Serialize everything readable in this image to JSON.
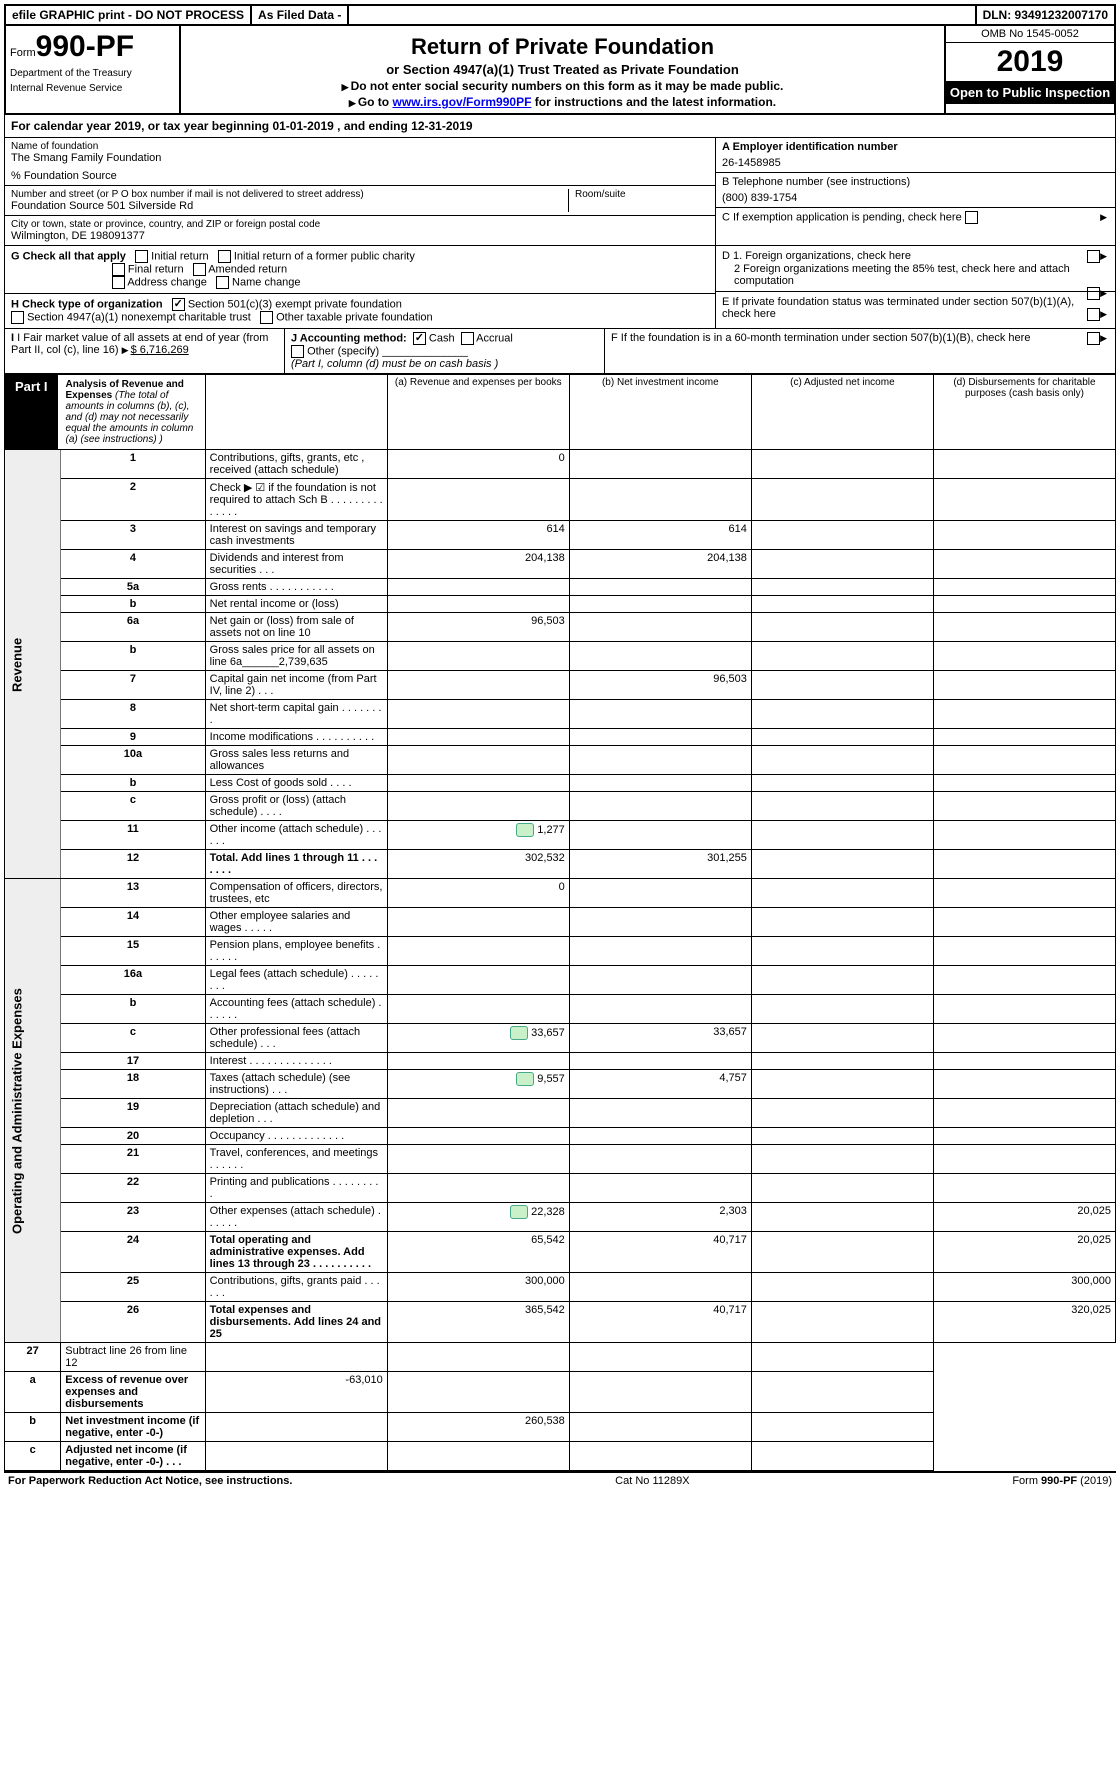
{
  "top": {
    "efile": "efile GRAPHIC print - DO NOT PROCESS",
    "asfiled": "As Filed Data -",
    "dln": "DLN: 93491232007170"
  },
  "header": {
    "form_prefix": "Form",
    "form_num": "990-PF",
    "dept1": "Department of the Treasury",
    "dept2": "Internal Revenue Service",
    "title": "Return of Private Foundation",
    "subtitle": "or Section 4947(a)(1) Trust Treated as Private Foundation",
    "note1": "Do not enter social security numbers on this form as it may be made public.",
    "note2_pre": "Go to ",
    "note2_link": "www.irs.gov/Form990PF",
    "note2_post": " for instructions and the latest information.",
    "omb": "OMB No 1545-0052",
    "year": "2019",
    "inspect": "Open to Public Inspection"
  },
  "calyear": "For calendar year 2019, or tax year beginning 01-01-2019          , and ending 12-31-2019",
  "info": {
    "name_label": "Name of foundation",
    "name": "The Smang Family Foundation",
    "source": "% Foundation Source",
    "addr_label": "Number and street (or P O  box number if mail is not delivered to street address)",
    "addr": "Foundation Source 501 Silverside Rd",
    "room_label": "Room/suite",
    "city_label": "City or town, state or province, country, and ZIP or foreign postal code",
    "city": "Wilmington, DE  198091377",
    "a_label": "A Employer identification number",
    "a_val": "26-1458985",
    "b_label": "B Telephone number (see instructions)",
    "b_val": "(800) 839-1754",
    "c_label": "C If exemption application is pending, check here",
    "d1": "D 1. Foreign organizations, check here",
    "d2": "2 Foreign organizations meeting the 85% test, check here and attach computation",
    "e": "E  If private foundation status was terminated under section 507(b)(1)(A), check here",
    "f": "F  If the foundation is in a 60-month termination under section 507(b)(1)(B), check here"
  },
  "g": {
    "label": "G Check all that apply",
    "opts": [
      "Initial return",
      "Initial return of a former public charity",
      "Final return",
      "Amended return",
      "Address change",
      "Name change"
    ]
  },
  "h": {
    "label": "H Check type of organization",
    "opt1": "Section 501(c)(3) exempt private foundation",
    "opt2": "Section 4947(a)(1) nonexempt charitable trust",
    "opt3": "Other taxable private foundation"
  },
  "i": {
    "label": "I Fair market value of all assets at end of year (from Part II, col  (c), line 16)",
    "val": "$  6,716,269"
  },
  "j": {
    "label": "J Accounting method:",
    "cash": "Cash",
    "accrual": "Accrual",
    "other": "Other (specify)",
    "note": "(Part I, column (d) must be on cash basis )"
  },
  "part1": {
    "badge": "Part I",
    "title": "Analysis of Revenue and Expenses",
    "note": " (The total of amounts in columns (b), (c), and (d) may not necessarily equal the amounts in column (a) (see instructions) )",
    "cols": {
      "a": "(a) Revenue and expenses per books",
      "b": "(b) Net investment income",
      "c": "(c) Adjusted net income",
      "d": "(d) Disbursements for charitable purposes (cash basis only)"
    }
  },
  "sections": {
    "revenue": "Revenue",
    "expenses": "Operating and Administrative Expenses"
  },
  "rows": [
    {
      "n": "1",
      "d": "Contributions, gifts, grants, etc , received (attach schedule)",
      "a": "0",
      "sec": "rev"
    },
    {
      "n": "2",
      "d": "Check ▶ ☑ if the foundation is not required to attach Sch  B   .  .  .  .  .  .  .  .  .  .  .  .  .  .",
      "sec": "rev"
    },
    {
      "n": "3",
      "d": "Interest on savings and temporary cash investments",
      "a": "614",
      "b": "614",
      "sec": "rev"
    },
    {
      "n": "4",
      "d": "Dividends and interest from securities   .  .  .",
      "a": "204,138",
      "b": "204,138",
      "sec": "rev"
    },
    {
      "n": "5a",
      "d": "Gross rents   .  .  .  .  .  .  .  .  .  .  .",
      "sec": "rev"
    },
    {
      "n": "b",
      "d": "Net rental income or (loss)  ",
      "sec": "rev"
    },
    {
      "n": "6a",
      "d": "Net gain or (loss) from sale of assets not on line 10",
      "a": "96,503",
      "sec": "rev"
    },
    {
      "n": "b",
      "d": "Gross sales price for all assets on line 6a______2,739,635",
      "sec": "rev"
    },
    {
      "n": "7",
      "d": "Capital gain net income (from Part IV, line 2)  .  .  .",
      "b": "96,503",
      "sec": "rev"
    },
    {
      "n": "8",
      "d": "Net short-term capital gain  .  .  .  .  .  .  .  .",
      "sec": "rev"
    },
    {
      "n": "9",
      "d": "Income modifications  .  .  .  .  .  .  .  .  .  .",
      "sec": "rev"
    },
    {
      "n": "10a",
      "d": "Gross sales less returns and allowances",
      "sec": "rev"
    },
    {
      "n": "b",
      "d": "Less  Cost of goods sold   .  .  .  .",
      "sec": "rev"
    },
    {
      "n": "c",
      "d": "Gross profit or (loss) (attach schedule)   .  .  .  .",
      "sec": "rev"
    },
    {
      "n": "11",
      "d": "Other income (attach schedule)   .  .  .  .  .  .",
      "a": "1,277",
      "att": true,
      "sec": "rev"
    },
    {
      "n": "12",
      "d": "Total. Add lines 1 through 11   .  .  .  .  .  .  .",
      "a": "302,532",
      "b": "301,255",
      "bold": true,
      "sec": "rev"
    },
    {
      "n": "13",
      "d": "Compensation of officers, directors, trustees, etc",
      "a": "0",
      "sec": "exp"
    },
    {
      "n": "14",
      "d": "Other employee salaries and wages   .  .  .  .  .",
      "sec": "exp"
    },
    {
      "n": "15",
      "d": "Pension plans, employee benefits  .  .  .  .  .  .",
      "sec": "exp"
    },
    {
      "n": "16a",
      "d": "Legal fees (attach schedule)  .  .  .  .  .  .  .  .",
      "sec": "exp"
    },
    {
      "n": "b",
      "d": "Accounting fees (attach schedule)  .  .  .  .  .  .",
      "sec": "exp"
    },
    {
      "n": "c",
      "d": "Other professional fees (attach schedule)   .  .  .",
      "a": "33,657",
      "b": "33,657",
      "att": true,
      "sec": "exp"
    },
    {
      "n": "17",
      "d": "Interest  .  .  .  .  .  .  .  .  .  .  .  .  .  .",
      "sec": "exp"
    },
    {
      "n": "18",
      "d": "Taxes (attach schedule) (see instructions)    .  .  .",
      "a": "9,557",
      "b": "4,757",
      "att": true,
      "sec": "exp"
    },
    {
      "n": "19",
      "d": "Depreciation (attach schedule) and depletion  .  .  .",
      "sec": "exp"
    },
    {
      "n": "20",
      "d": "Occupancy   .  .  .  .  .  .  .  .  .  .  .  .  .",
      "sec": "exp"
    },
    {
      "n": "21",
      "d": "Travel, conferences, and meetings  .  .  .  .  .  .",
      "sec": "exp"
    },
    {
      "n": "22",
      "d": "Printing and publications  .  .  .  .  .  .  .  .  .",
      "sec": "exp"
    },
    {
      "n": "23",
      "d": "Other expenses (attach schedule)  .  .  .  .  .  .",
      "a": "22,328",
      "b": "2,303",
      "dd": "20,025",
      "att": true,
      "sec": "exp"
    },
    {
      "n": "24",
      "d": "Total operating and administrative expenses. Add lines 13 through 23   .  .  .  .  .  .  .  .  .  .",
      "a": "65,542",
      "b": "40,717",
      "dd": "20,025",
      "bold": true,
      "sec": "exp"
    },
    {
      "n": "25",
      "d": "Contributions, gifts, grants paid   .  .  .  .  .  .",
      "a": "300,000",
      "dd": "300,000",
      "sec": "exp"
    },
    {
      "n": "26",
      "d": "Total expenses and disbursements. Add lines 24 and 25",
      "a": "365,542",
      "b": "40,717",
      "dd": "320,025",
      "bold": true,
      "sec": "exp"
    },
    {
      "n": "27",
      "d": "Subtract line 26 from line 12",
      "sec": "net"
    },
    {
      "n": "a",
      "d": "Excess of revenue over expenses and disbursements",
      "a": "-63,010",
      "bold": true,
      "sec": "net"
    },
    {
      "n": "b",
      "d": "Net investment income (if negative, enter -0-)",
      "b": "260,538",
      "bold": true,
      "sec": "net"
    },
    {
      "n": "c",
      "d": "Adjusted net income (if negative, enter -0-)  .  .  .",
      "bold": true,
      "sec": "net"
    }
  ],
  "footer": {
    "left": "For Paperwork Reduction Act Notice, see instructions.",
    "mid": "Cat  No  11289X",
    "right": "Form 990-PF (2019)"
  }
}
